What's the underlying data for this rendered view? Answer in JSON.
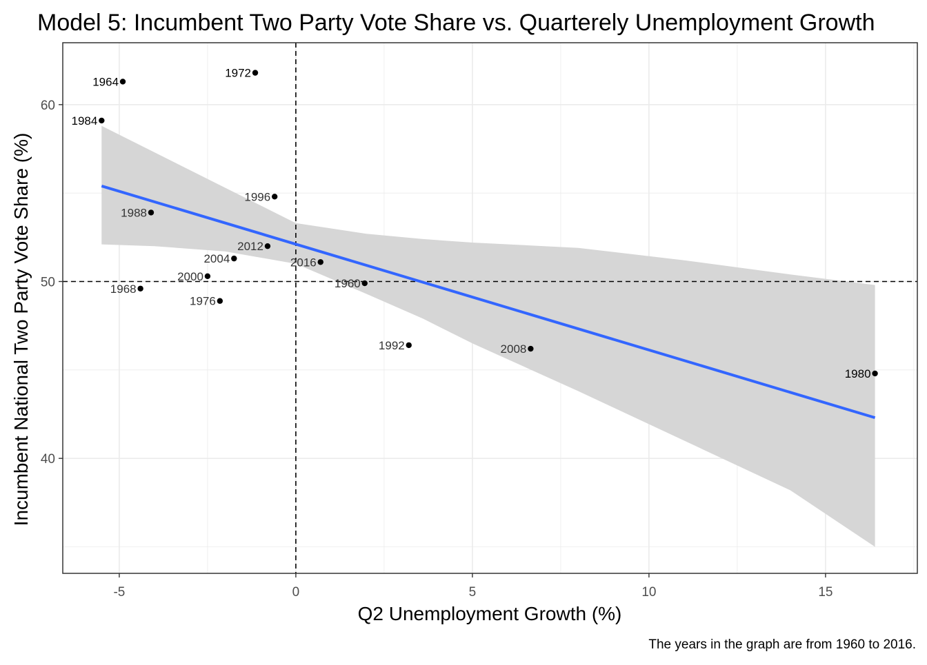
{
  "chart_data": {
    "type": "scatter",
    "title": "Model 5: Incumbent Two Party Vote Share vs. Quarterely Unemployment Growth",
    "xlabel": "Q2 Unemployment Growth (%)",
    "ylabel": "Incumbent National Two Party Vote Share (%)",
    "caption": "The years in the graph are from 1960 to 2016.",
    "xlim": [
      -6.6,
      17.6
    ],
    "ylim": [
      33.5,
      63.5
    ],
    "x_ticks": [
      -5,
      0,
      5,
      10,
      15
    ],
    "x_tick_labels": [
      "-5",
      "0",
      "5",
      "10",
      "15"
    ],
    "y_ticks": [
      40,
      50,
      60
    ],
    "y_tick_labels": [
      "40",
      "50",
      "60"
    ],
    "grid": true,
    "legend": "none",
    "points": [
      {
        "label": "1960",
        "x": 1.95,
        "y": 49.9
      },
      {
        "label": "1964",
        "x": -4.9,
        "y": 61.3
      },
      {
        "label": "1968",
        "x": -4.4,
        "y": 49.6
      },
      {
        "label": "1972",
        "x": -1.15,
        "y": 61.8
      },
      {
        "label": "1976",
        "x": -2.15,
        "y": 48.9
      },
      {
        "label": "1980",
        "x": 16.4,
        "y": 44.8
      },
      {
        "label": "1984",
        "x": -5.5,
        "y": 59.1
      },
      {
        "label": "1988",
        "x": -4.1,
        "y": 53.9
      },
      {
        "label": "1992",
        "x": 3.2,
        "y": 46.4
      },
      {
        "label": "1996",
        "x": -0.6,
        "y": 54.8
      },
      {
        "label": "2000",
        "x": -2.5,
        "y": 50.3
      },
      {
        "label": "2004",
        "x": -1.75,
        "y": 51.3
      },
      {
        "label": "2008",
        "x": 6.65,
        "y": 46.2
      },
      {
        "label": "2012",
        "x": -0.8,
        "y": 52.0
      },
      {
        "label": "2016",
        "x": 0.7,
        "y": 51.1
      }
    ],
    "reference_lines": {
      "vertical_x": 0,
      "horizontal_y": 50
    },
    "fit_line": {
      "x": [
        -5.5,
        16.4
      ],
      "y": [
        55.4,
        42.3
      ]
    },
    "confidence_band": {
      "x": [
        -5.5,
        -4,
        -2,
        0,
        2,
        3.6,
        5,
        8,
        11,
        14,
        16.4
      ],
      "lower": [
        52.1,
        52.0,
        51.7,
        51.0,
        49.3,
        47.9,
        46.5,
        43.8,
        41.0,
        38.2,
        35.0
      ],
      "upper": [
        58.8,
        57.3,
        55.3,
        53.3,
        52.7,
        52.4,
        52.2,
        51.9,
        51.2,
        50.4,
        49.8
      ]
    },
    "colors": {
      "point": "#000000",
      "fit": "#3366ff",
      "band": "#d6d6d6",
      "grid": "#ebebeb",
      "panel_border": "#333333",
      "reference": "#000000"
    }
  }
}
